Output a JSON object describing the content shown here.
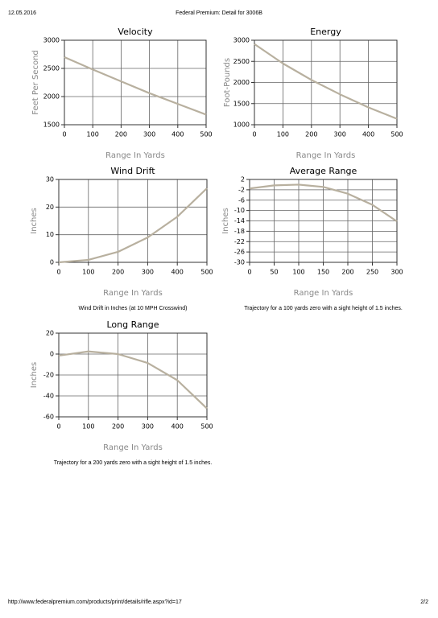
{
  "header": {
    "date": "12.05.2016",
    "title": "Federal Premium: Detail for 3006B"
  },
  "footer": {
    "url": "http://www.federalpremium.com/products/print/details/rifle.aspx?id=17",
    "page": "2/2"
  },
  "chart_data": [
    {
      "type": "line",
      "title": "Velocity",
      "x_label": "Range In Yards",
      "y_label": "Feet Per Second",
      "xlim": [
        0,
        500
      ],
      "xticks": [
        0,
        100,
        200,
        300,
        400,
        500
      ],
      "ylim": [
        1500,
        3000
      ],
      "yticks": [
        1500,
        2000,
        2500,
        3000
      ],
      "grid": true,
      "color": "#b8b09f",
      "x": [
        0,
        100,
        200,
        300,
        400,
        500
      ],
      "values": [
        2700,
        2480,
        2270,
        2060,
        1870,
        1680
      ]
    },
    {
      "type": "line",
      "title": "Energy",
      "x_label": "Range In Yards",
      "y_label": "Foot-Pounds",
      "xlim": [
        0,
        500
      ],
      "xticks": [
        0,
        100,
        200,
        300,
        400,
        500
      ],
      "ylim": [
        1000,
        3000
      ],
      "yticks": [
        1000,
        1500,
        2000,
        2500,
        3000
      ],
      "grid": true,
      "color": "#b8b09f",
      "x": [
        0,
        100,
        200,
        300,
        400,
        500
      ],
      "values": [
        2910,
        2450,
        2060,
        1720,
        1410,
        1140
      ]
    },
    {
      "type": "line",
      "title": "Wind Drift",
      "x_label": "Range In Yards",
      "y_label": "Inches",
      "caption": "Wind Drift in Inches (at 10 MPH Crosswind)",
      "xlim": [
        0,
        500
      ],
      "xticks": [
        0,
        100,
        200,
        300,
        400,
        500
      ],
      "ylim": [
        0,
        30
      ],
      "yticks": [
        0,
        10,
        20,
        30
      ],
      "grid": true,
      "color": "#b8b09f",
      "x": [
        0,
        100,
        200,
        300,
        400,
        500
      ],
      "values": [
        0,
        0.9,
        3.8,
        9,
        16.5,
        26.8
      ]
    },
    {
      "type": "line",
      "title": "Average Range",
      "x_label": "Range In Yards",
      "y_label": "Inches",
      "caption": "Trajectory for a 100 yards zero with a sight height of 1.5 inches.",
      "xlim": [
        0,
        300
      ],
      "xticks": [
        0,
        50,
        100,
        150,
        200,
        250,
        300
      ],
      "ylim": [
        -30,
        2
      ],
      "yticks": [
        2,
        -2,
        -6,
        -10,
        -14,
        -18,
        -22,
        -26,
        -30
      ],
      "grid": true,
      "color": "#b8b09f",
      "x": [
        0,
        50,
        100,
        150,
        200,
        250,
        300
      ],
      "values": [
        -1.5,
        -0.3,
        0,
        -0.9,
        -3.5,
        -7.8,
        -14.2
      ]
    },
    {
      "type": "line",
      "title": "Long Range",
      "x_label": "Range In Yards",
      "y_label": "Inches",
      "caption": "Trajectory for a 200 yards zero with a sight height of 1.5 inches.",
      "xlim": [
        0,
        500
      ],
      "xticks": [
        0,
        100,
        200,
        300,
        400,
        500
      ],
      "ylim": [
        -60,
        20
      ],
      "yticks": [
        20,
        0,
        -20,
        -40,
        -60
      ],
      "grid": true,
      "color": "#b8b09f",
      "x": [
        0,
        100,
        200,
        300,
        400,
        500
      ],
      "values": [
        -1.5,
        2.5,
        0,
        -8.5,
        -25,
        -52
      ]
    }
  ]
}
